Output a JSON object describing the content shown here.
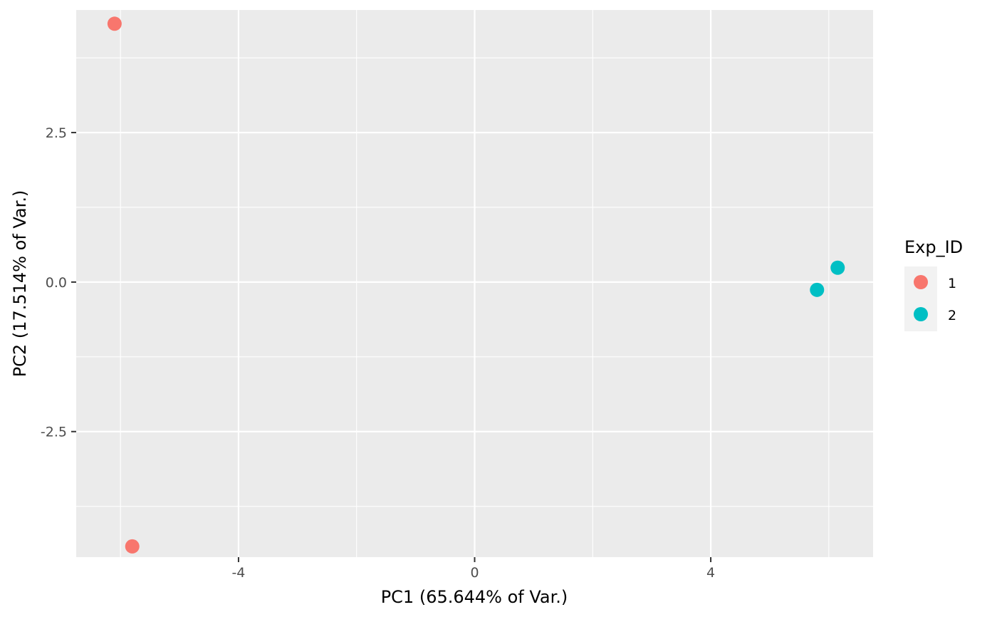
{
  "chart_data": {
    "type": "scatter",
    "title": "",
    "xlabel": "PC1 (65.644% of Var.)",
    "ylabel": "PC2 (17.514% of Var.)",
    "xlim": [
      -6.75,
      6.75
    ],
    "ylim": [
      -4.6,
      4.55
    ],
    "x_ticks": [
      -4,
      0,
      4
    ],
    "x_tick_labels": [
      "-4",
      "0",
      "4"
    ],
    "y_ticks": [
      2.5,
      0,
      -2.5
    ],
    "y_tick_labels": [
      "2.5",
      "0.0",
      "-2.5"
    ],
    "x_minor": [
      -6,
      -2,
      2,
      6
    ],
    "y_minor": [
      3.75,
      1.25,
      -1.25,
      -3.75
    ],
    "grid": true,
    "panel_color": "#EBEBEB",
    "legend": {
      "title": "Exp_ID",
      "position": "right",
      "entries": [
        {
          "label": "1",
          "color": "#F8766D"
        },
        {
          "label": "2",
          "color": "#00BFC4"
        }
      ]
    },
    "series": [
      {
        "name": "1",
        "color": "#F8766D",
        "points": [
          {
            "x": -6.1,
            "y": 4.32
          },
          {
            "x": -5.8,
            "y": -4.42
          }
        ]
      },
      {
        "name": "2",
        "color": "#00BFC4",
        "points": [
          {
            "x": 5.8,
            "y": -0.13
          },
          {
            "x": 6.15,
            "y": 0.24
          }
        ]
      }
    ]
  }
}
